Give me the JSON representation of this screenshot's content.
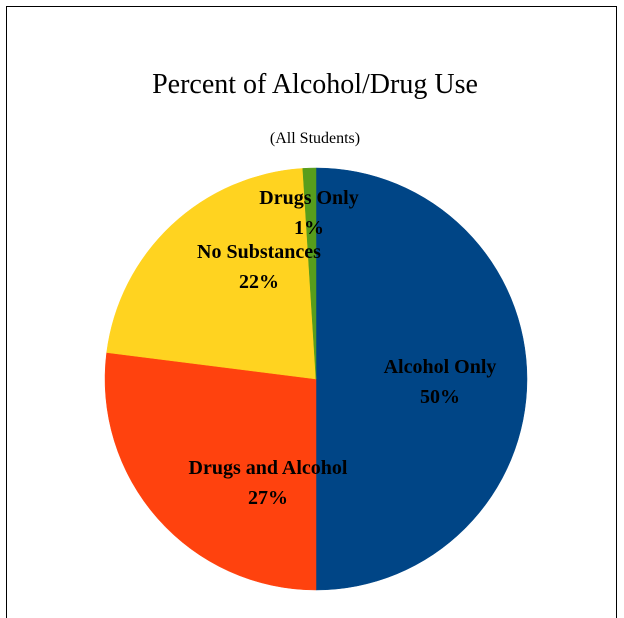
{
  "chart_data": {
    "type": "pie",
    "title": "Percent of Alcohol/Drug Use",
    "subtitle": "(All Students)",
    "slices": [
      {
        "name": "Alcohol Only",
        "value": 50,
        "label": "50%",
        "color": "#004586"
      },
      {
        "name": "Drugs and Alcohol",
        "value": 27,
        "label": "27%",
        "color": "#ff420e"
      },
      {
        "name": "No Substances",
        "value": 22,
        "label": "22%",
        "color": "#ffd320"
      },
      {
        "name": "Drugs Only",
        "value": 1,
        "label": "1%",
        "color": "#579d1c"
      }
    ],
    "start_angle_deg": 0,
    "direction": "clockwise",
    "legend": "none"
  }
}
